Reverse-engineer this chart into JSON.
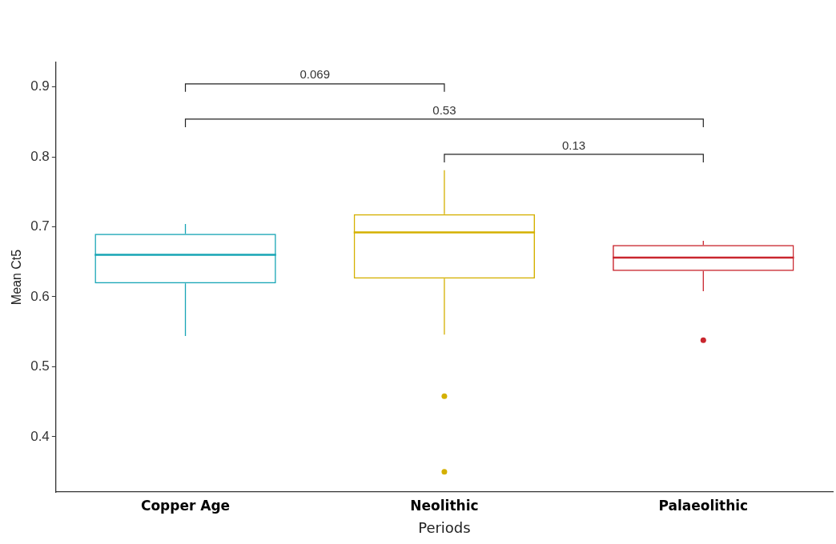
{
  "chart_data": {
    "type": "box",
    "xlabel": "Periods",
    "ylabel": "Mean Ct5",
    "categories": [
      "Copper Age",
      "Neolithic",
      "Palaeolithic"
    ],
    "series": [
      {
        "color": "#17a5b5",
        "boxes": [
          {
            "low": 0.544,
            "q1": 0.619,
            "median": 0.66,
            "q3": 0.69,
            "high": 0.704
          },
          null,
          null
        ]
      },
      {
        "color": "#d4b000",
        "boxes": [
          null,
          {
            "low": 0.546,
            "q1": 0.626,
            "median": 0.692,
            "q3": 0.718,
            "high": 0.781,
            "outliers": [
              0.458,
              0.35
            ]
          },
          null
        ]
      },
      {
        "color": "#c9262e",
        "boxes": [
          null,
          null,
          {
            "low": 0.608,
            "q1": 0.637,
            "median": 0.656,
            "q3": 0.674,
            "high": 0.68,
            "outliers": [
              0.538
            ]
          }
        ]
      }
    ],
    "ylim": [
      0.321,
      0.935
    ],
    "yticks": [
      0.4,
      0.5,
      0.6,
      0.7,
      0.8,
      0.9
    ],
    "grid": false,
    "legend": false,
    "annotations": [
      "0.069",
      "0.53",
      "0.13"
    ]
  }
}
